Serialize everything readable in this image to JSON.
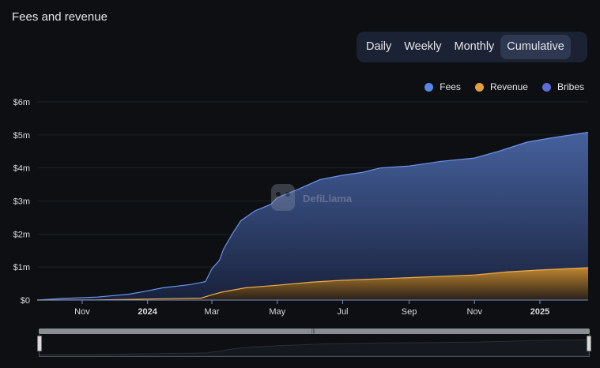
{
  "header": {
    "title": "Fees and revenue"
  },
  "tabs": [
    {
      "label": "Daily",
      "active": false
    },
    {
      "label": "Weekly",
      "active": false
    },
    {
      "label": "Monthly",
      "active": false
    },
    {
      "label": "Cumulative",
      "active": true
    }
  ],
  "watermark": "DefiLlama",
  "colors": {
    "fees": "#5b86e5",
    "revenue": "#e3a03c",
    "bribes": "#5a6fd6"
  },
  "chart_data": {
    "type": "area",
    "title": "",
    "legend_position": "top-right",
    "grid": true,
    "ylim": [
      0,
      6000000
    ],
    "y_ticks": [
      {
        "value": 0,
        "label": "$0"
      },
      {
        "value": 1000000,
        "label": "$1m"
      },
      {
        "value": 2000000,
        "label": "$2m"
      },
      {
        "value": 3000000,
        "label": "$3m"
      },
      {
        "value": 4000000,
        "label": "$4m"
      },
      {
        "value": 5000000,
        "label": "$5m"
      },
      {
        "value": 6000000,
        "label": "$6m"
      }
    ],
    "xlim": [
      "2023-09-20",
      "2025-02-15"
    ],
    "x_ticks": [
      {
        "date": "2023-11-01",
        "label": "Nov",
        "bold": false
      },
      {
        "date": "2024-01-01",
        "label": "2024",
        "bold": true
      },
      {
        "date": "2024-03-01",
        "label": "Mar",
        "bold": false
      },
      {
        "date": "2024-05-01",
        "label": "May",
        "bold": false
      },
      {
        "date": "2024-07-01",
        "label": "Jul",
        "bold": false
      },
      {
        "date": "2024-09-01",
        "label": "Sep",
        "bold": false
      },
      {
        "date": "2024-11-01",
        "label": "Nov",
        "bold": false
      },
      {
        "date": "2025-01-01",
        "label": "2025",
        "bold": true
      }
    ],
    "series": [
      {
        "name": "Fees",
        "points": [
          [
            "2023-09-20",
            0
          ],
          [
            "2023-10-15",
            50000
          ],
          [
            "2023-11-15",
            90000
          ],
          [
            "2023-12-15",
            180000
          ],
          [
            "2024-01-01",
            280000
          ],
          [
            "2024-01-15",
            370000
          ],
          [
            "2024-02-10",
            470000
          ],
          [
            "2024-02-24",
            560000
          ],
          [
            "2024-03-01",
            950000
          ],
          [
            "2024-03-08",
            1200000
          ],
          [
            "2024-03-12",
            1550000
          ],
          [
            "2024-03-20",
            2000000
          ],
          [
            "2024-03-28",
            2400000
          ],
          [
            "2024-04-10",
            2700000
          ],
          [
            "2024-04-25",
            2900000
          ],
          [
            "2024-05-01",
            3100000
          ],
          [
            "2024-05-20",
            3350000
          ],
          [
            "2024-06-10",
            3650000
          ],
          [
            "2024-07-01",
            3780000
          ],
          [
            "2024-07-20",
            3870000
          ],
          [
            "2024-08-05",
            4000000
          ],
          [
            "2024-09-01",
            4060000
          ],
          [
            "2024-10-01",
            4200000
          ],
          [
            "2024-11-01",
            4300000
          ],
          [
            "2024-11-25",
            4520000
          ],
          [
            "2024-12-20",
            4780000
          ],
          [
            "2025-01-10",
            4900000
          ],
          [
            "2025-02-15",
            5080000
          ]
        ]
      },
      {
        "name": "Revenue",
        "points": [
          [
            "2023-09-20",
            0
          ],
          [
            "2023-11-15",
            5000
          ],
          [
            "2024-01-01",
            30000
          ],
          [
            "2024-02-20",
            60000
          ],
          [
            "2024-03-01",
            160000
          ],
          [
            "2024-03-10",
            240000
          ],
          [
            "2024-04-01",
            370000
          ],
          [
            "2024-05-01",
            450000
          ],
          [
            "2024-06-01",
            540000
          ],
          [
            "2024-07-01",
            600000
          ],
          [
            "2024-09-01",
            680000
          ],
          [
            "2024-11-01",
            760000
          ],
          [
            "2024-12-01",
            850000
          ],
          [
            "2025-01-01",
            910000
          ],
          [
            "2025-02-15",
            980000
          ]
        ]
      },
      {
        "name": "Bribes",
        "points": []
      }
    ]
  }
}
